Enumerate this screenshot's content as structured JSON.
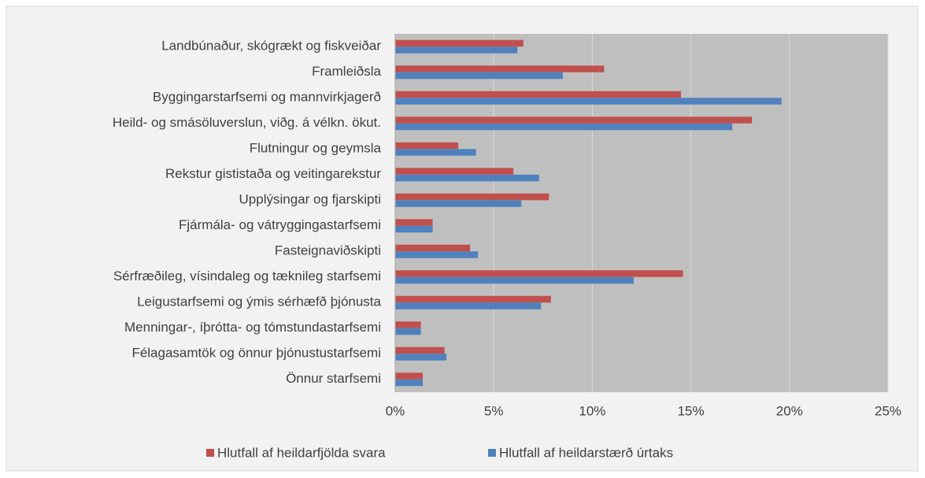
{
  "chart_data": {
    "type": "bar",
    "orientation": "horizontal",
    "categories": [
      "Landbúnaður, skógrækt og fiskveiðar",
      "Framleiðsla",
      "Byggingarstarfsemi og mannvirkjagerð",
      "Heild- og smásöluverslun, viðg. á vélkn. ökut.",
      "Flutningur og geymsla",
      "Rekstur gististaða og veitingarekstur",
      "Upplýsingar og fjarskipti",
      "Fjármála- og vátryggingastarfsemi",
      "Fasteignaviðskipti",
      "Sérfræðileg, vísindaleg og tæknileg starfsemi",
      "Leigustarfsemi og ýmis sérhæfð þjónusta",
      "Menningar-, íþrótta- og tómstundastarfsemi",
      "Félagasamtök og önnur þjónustustarfsemi",
      "Önnur starfsemi"
    ],
    "series": [
      {
        "name": "Hlutfall af heildarfjölda svara",
        "color": "#c0504d",
        "values": [
          6.5,
          10.6,
          14.5,
          18.1,
          3.2,
          6.0,
          7.8,
          1.9,
          3.8,
          14.6,
          7.9,
          1.3,
          2.5,
          1.4
        ]
      },
      {
        "name": "Hlutfall af heildarstærð úrtaks",
        "color": "#4f81bd",
        "values": [
          6.2,
          8.5,
          19.6,
          17.1,
          4.1,
          7.3,
          6.4,
          1.9,
          4.2,
          12.1,
          7.4,
          1.3,
          2.6,
          1.4
        ]
      }
    ],
    "xlim": [
      0,
      25
    ],
    "xticks": [
      {
        "value": 0,
        "label": "0%"
      },
      {
        "value": 5,
        "label": "5%"
      },
      {
        "value": 10,
        "label": "10%"
      },
      {
        "value": 15,
        "label": "15%"
      },
      {
        "value": 20,
        "label": "20%"
      },
      {
        "value": 25,
        "label": "25%"
      }
    ],
    "grid": true,
    "legend": "bottom"
  }
}
